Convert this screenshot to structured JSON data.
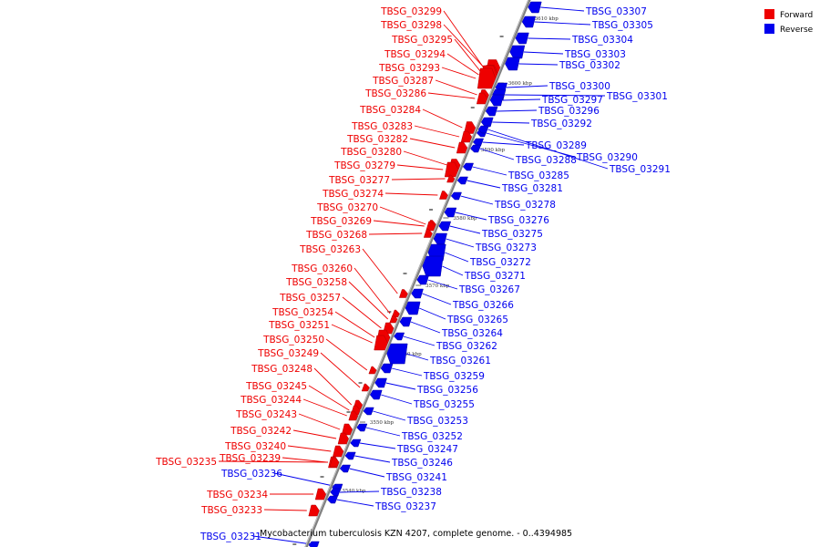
{
  "legend": {
    "forward_label": "Forward",
    "reverse_label": "Reverse",
    "forward_color": "#ee0000",
    "reverse_color": "#0000ee"
  },
  "caption": "Mycobacterium tuberculosis KZN 4207, complete genome. - 0..4394985",
  "backbone_color": "#808080",
  "ticks": [
    "3610 kbp",
    "3600 kbp",
    "3590 kbp",
    "3580 kbp",
    "3570 kbp",
    "3560 kbp",
    "3550 kbp",
    "3540 kbp"
  ],
  "forward_genes": [
    "TBSG_03299",
    "TBSG_03298",
    "TBSG_03295",
    "TBSG_03294",
    "TBSG_03293",
    "TBSG_03287",
    "TBSG_03286",
    "TBSG_03284",
    "TBSG_03283",
    "TBSG_03282",
    "TBSG_03280",
    "TBSG_03279",
    "TBSG_03277",
    "TBSG_03274",
    "TBSG_03270",
    "TBSG_03269",
    "TBSG_03268",
    "TBSG_03263",
    "TBSG_03260",
    "TBSG_03258",
    "TBSG_03257",
    "TBSG_03254",
    "TBSG_03251",
    "TBSG_03250",
    "TBSG_03249",
    "TBSG_03248",
    "TBSG_03245",
    "TBSG_03244",
    "TBSG_03243",
    "TBSG_03242",
    "TBSG_03240",
    "TBSG_03239",
    "TBSG_03235",
    "TBSG_03234",
    "TBSG_03233"
  ],
  "reverse_genes": [
    "TBSG_03307",
    "TBSG_03305",
    "TBSG_03304",
    "TBSG_03303",
    "TBSG_03302",
    "TBSG_03300",
    "TBSG_03301",
    "TBSG_03297",
    "TBSG_03296",
    "TBSG_03292",
    "TBSG_03289",
    "TBSG_03290",
    "TBSG_03288",
    "TBSG_03291",
    "TBSG_03285",
    "TBSG_03281",
    "TBSG_03278",
    "TBSG_03276",
    "TBSG_03275",
    "TBSG_03273",
    "TBSG_03272",
    "TBSG_03271",
    "TBSG_03267",
    "TBSG_03266",
    "TBSG_03265",
    "TBSG_03264",
    "TBSG_03262",
    "TBSG_03261",
    "TBSG_03259",
    "TBSG_03256",
    "TBSG_03255",
    "TBSG_03253",
    "TBSG_03252",
    "TBSG_03247",
    "TBSG_03246",
    "TBSG_03241",
    "TBSG_03236",
    "TBSG_03238",
    "TBSG_03237",
    "TBSG_03231"
  ]
}
